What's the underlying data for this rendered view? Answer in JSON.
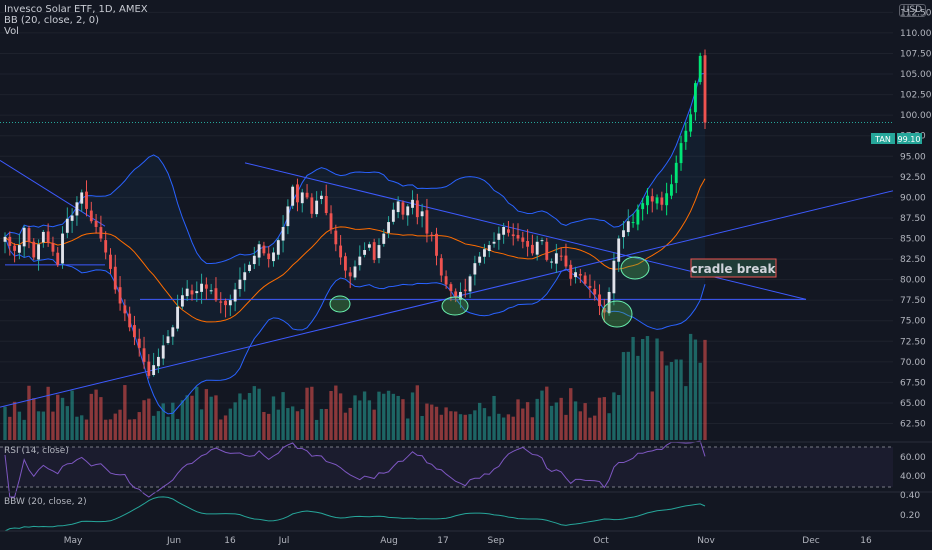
{
  "header": {
    "title": "Invesco Solar ETF, 1D, AMEX",
    "bb_label": "BB (20, close, 2, 0)",
    "vol_label": "Vol",
    "currency": "USD"
  },
  "panes": {
    "rsi_label": "RSI (14, close)",
    "bbw_label": "BBW (20, close, 2)"
  },
  "chart_data": {
    "type": "candlestick",
    "symbol": "TAN",
    "last_price_label": "TAN",
    "last_price": "99.10",
    "annotation": "cradle break",
    "y_ticks": [
      "112.50",
      "110.00",
      "107.50",
      "105.00",
      "102.50",
      "100.00",
      "97.50",
      "95.00",
      "92.50",
      "90.00",
      "87.50",
      "85.00",
      "82.50",
      "80.00",
      "77.50",
      "75.00",
      "72.50",
      "70.00",
      "67.50",
      "65.00",
      "62.50"
    ],
    "rsi_ticks": [
      "60.00",
      "40.00"
    ],
    "bbw_ticks": [
      "0.40",
      "0.20"
    ],
    "x_ticks": [
      "May",
      "Jun",
      "16",
      "Jul",
      "Aug",
      "17",
      "Sep",
      "Oct",
      "Nov",
      "Dec",
      "16"
    ],
    "ylim": [
      60.5,
      114
    ],
    "series": [
      {
        "name": "price",
        "close": [
          85.2,
          84.1,
          83.5,
          84.2,
          86.3,
          84.6,
          82.7,
          84.3,
          85.8,
          84.5,
          83.4,
          81.8,
          85.6,
          87.4,
          87.8,
          89.4,
          90.6,
          88.6,
          87.1,
          86.4,
          85.0,
          83.3,
          81.3,
          78.8,
          77.1,
          75.9,
          74.2,
          73.0,
          71.7,
          70.0,
          68.3,
          69.6,
          70.6,
          72.0,
          73.1,
          74.2,
          76.7,
          78.1,
          78.9,
          78.2,
          78.6,
          79.5,
          78.9,
          78.7,
          77.5,
          77.2,
          76.9,
          77.5,
          78.8,
          80.0,
          80.9,
          81.8,
          82.9,
          84.3,
          83.2,
          82.5,
          83.3,
          84.8,
          86.4,
          88.9,
          91.3,
          89.4,
          90.6,
          90.0,
          88.0,
          89.6,
          90.2,
          88.1,
          86.1,
          84.3,
          82.7,
          81.1,
          80.4,
          81.6,
          82.8,
          83.6,
          84.3,
          82.4,
          84.2,
          85.6,
          87.0,
          88.5,
          89.5,
          87.9,
          88.9,
          89.7,
          87.6,
          88.3,
          85.6,
          85.3,
          82.9,
          80.5,
          79.4,
          78.6,
          77.8,
          78.5,
          78.6,
          80.4,
          82.0,
          82.8,
          83.7,
          84.2,
          84.6,
          85.6,
          86.4,
          85.7,
          85.3,
          85.0,
          84.6,
          84.0,
          83.2,
          84.6,
          84.8,
          82.4,
          82.2,
          83.2,
          82.9,
          81.6,
          80.1,
          80.9,
          80.5,
          79.5,
          79.0,
          78.2,
          76.8,
          76.0,
          78.5,
          82.3,
          85.0,
          86.0,
          87.1,
          87.0,
          88.5,
          89.3,
          90.2,
          89.5,
          90.0,
          89.1,
          90.5,
          91.6,
          94.2,
          96.6,
          98.1,
          100.1,
          103.9,
          107.2,
          99.1
        ]
      }
    ],
    "indicators": [
      "Bollinger Bands (20, 2)",
      "Volume",
      "RSI (14)",
      "BBW (20, 2)"
    ]
  }
}
